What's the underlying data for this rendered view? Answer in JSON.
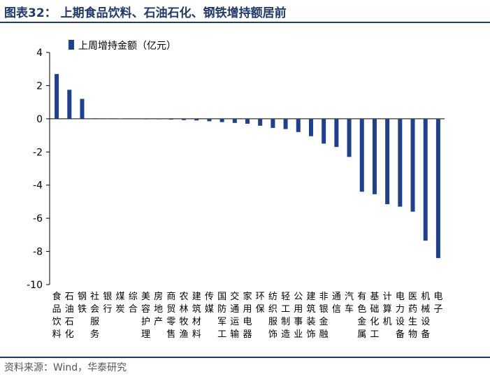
{
  "page": {
    "title": "图表32： 上期食品饮料、石油石化、钢铁增持额居前",
    "source": "资料来源：Wind，华泰研究",
    "accent_color": "#1f3a6e"
  },
  "chart_data": {
    "type": "bar",
    "title": "",
    "xlabel": "",
    "ylabel": "",
    "ylim": [
      -10,
      4
    ],
    "yticks": [
      4,
      2,
      0,
      -2,
      -4,
      -6,
      -8,
      -10
    ],
    "grid": false,
    "legend_position": "top-left",
    "bar_color": "#1f3f8f",
    "categories": [
      "食品饮料",
      "石油石化",
      "钢铁",
      "社会服务",
      "银行",
      "煤炭",
      "综合",
      "美容护理",
      "房地产",
      "商贸零售",
      "农林牧渔",
      "建筑材料",
      "传媒",
      "国防军工",
      "交通运输",
      "家用电器",
      "环保",
      "纺织服饰",
      "轻工制造",
      "公用事业",
      "建筑装饰",
      "非银金融",
      "通信",
      "汽车",
      "有色金属",
      "基础化工",
      "计算机",
      "电力设备",
      "医药生物",
      "机械设备",
      "电子"
    ],
    "series": [
      {
        "name": "上周增持金额（亿元）",
        "values": [
          2.7,
          1.75,
          1.2,
          0.03,
          0.02,
          0.01,
          0.0,
          -0.02,
          -0.03,
          -0.05,
          -0.08,
          -0.1,
          -0.15,
          -0.2,
          -0.25,
          -0.3,
          -0.42,
          -0.55,
          -0.62,
          -0.8,
          -1.05,
          -1.5,
          -1.7,
          -2.3,
          -4.4,
          -4.55,
          -5.15,
          -5.3,
          -5.6,
          -7.35,
          -8.4
        ]
      }
    ]
  }
}
